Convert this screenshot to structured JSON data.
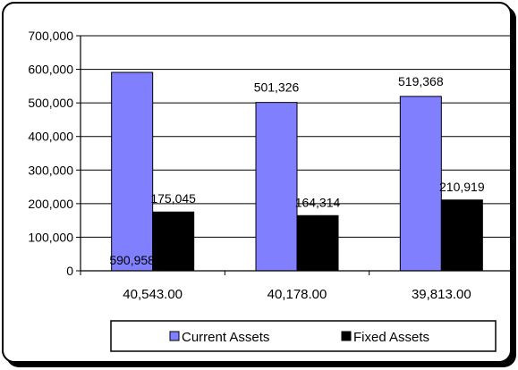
{
  "chart_data": {
    "type": "bar",
    "categories": [
      "40,543.00",
      "40,178.00",
      "39,813.00"
    ],
    "series": [
      {
        "name": "Current Assets",
        "values": [
          590958,
          501326,
          519368
        ],
        "labels": [
          "590,958",
          "501,326",
          "519,368"
        ],
        "color": "#8080ff"
      },
      {
        "name": "Fixed Assets",
        "values": [
          175045,
          164314,
          210919
        ],
        "labels": [
          "175,045",
          "164,314",
          "210,919"
        ],
        "color": "#000000"
      }
    ],
    "ylim": [
      0,
      700000
    ],
    "yticks": [
      0,
      100000,
      200000,
      300000,
      400000,
      500000,
      600000,
      700000
    ],
    "ytick_labels": [
      "0",
      "100,000",
      "200,000",
      "300,000",
      "400,000",
      "500,000",
      "600,000",
      "700,000"
    ],
    "grid": true,
    "legend_position": "bottom",
    "title": "",
    "xlabel": "",
    "ylabel": ""
  }
}
